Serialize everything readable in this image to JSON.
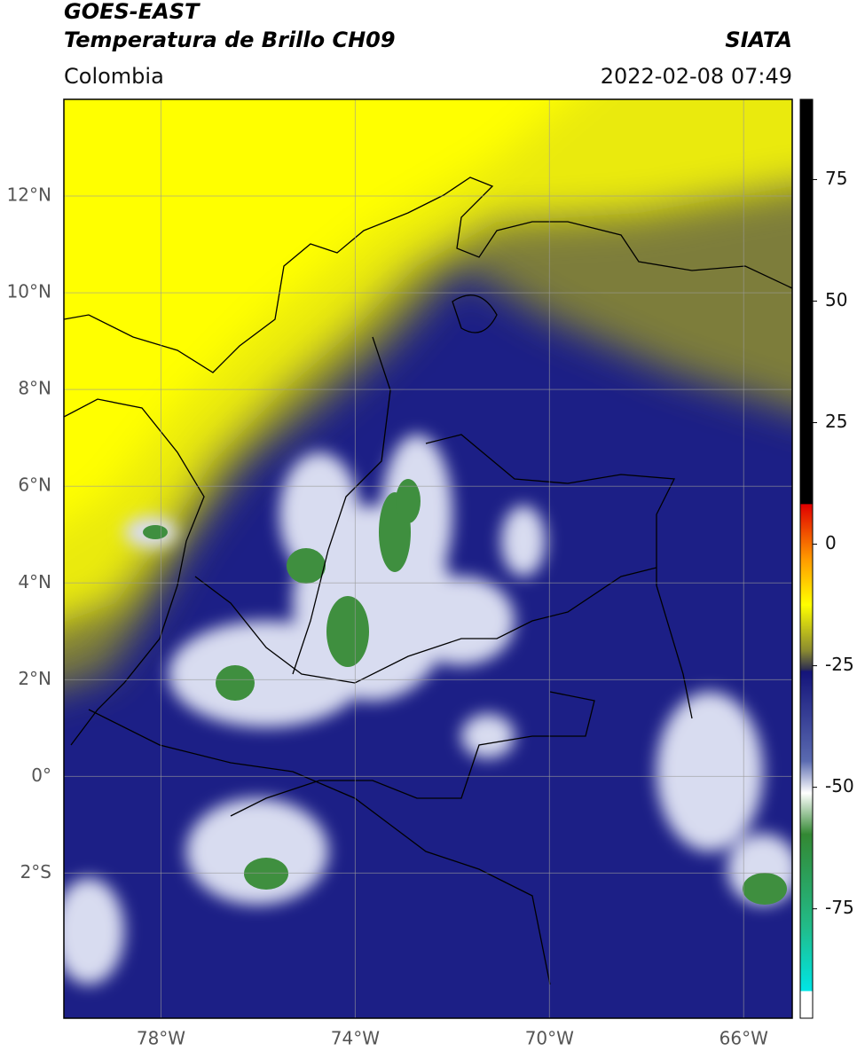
{
  "header": {
    "title": "GOES-EAST",
    "subtitle": "Temperatura de Brillo CH09",
    "region": "Colombia",
    "source": "SIATA",
    "datetime": "2022-02-08 07:49"
  },
  "map": {
    "xlim": [
      -80.0,
      -65.0
    ],
    "ylim": [
      -5.0,
      14.0
    ],
    "xticks": [
      {
        "value": -78,
        "label": "78°W"
      },
      {
        "value": -74,
        "label": "74°W"
      },
      {
        "value": -70,
        "label": "70°W"
      },
      {
        "value": -66,
        "label": "66°W"
      }
    ],
    "yticks": [
      {
        "value": 12,
        "label": "12°N"
      },
      {
        "value": 10,
        "label": "10°N"
      },
      {
        "value": 8,
        "label": "8°N"
      },
      {
        "value": 6,
        "label": "6°N"
      },
      {
        "value": 4,
        "label": "4°N"
      },
      {
        "value": 2,
        "label": "2°N"
      },
      {
        "value": 0,
        "label": "0°"
      },
      {
        "value": -2,
        "label": "2°S"
      }
    ],
    "grid": true
  },
  "colorbar": {
    "lim": [
      -97.5,
      91.5
    ],
    "ticks": [
      75,
      50,
      25,
      0,
      -25,
      -50,
      -75
    ]
  }
}
